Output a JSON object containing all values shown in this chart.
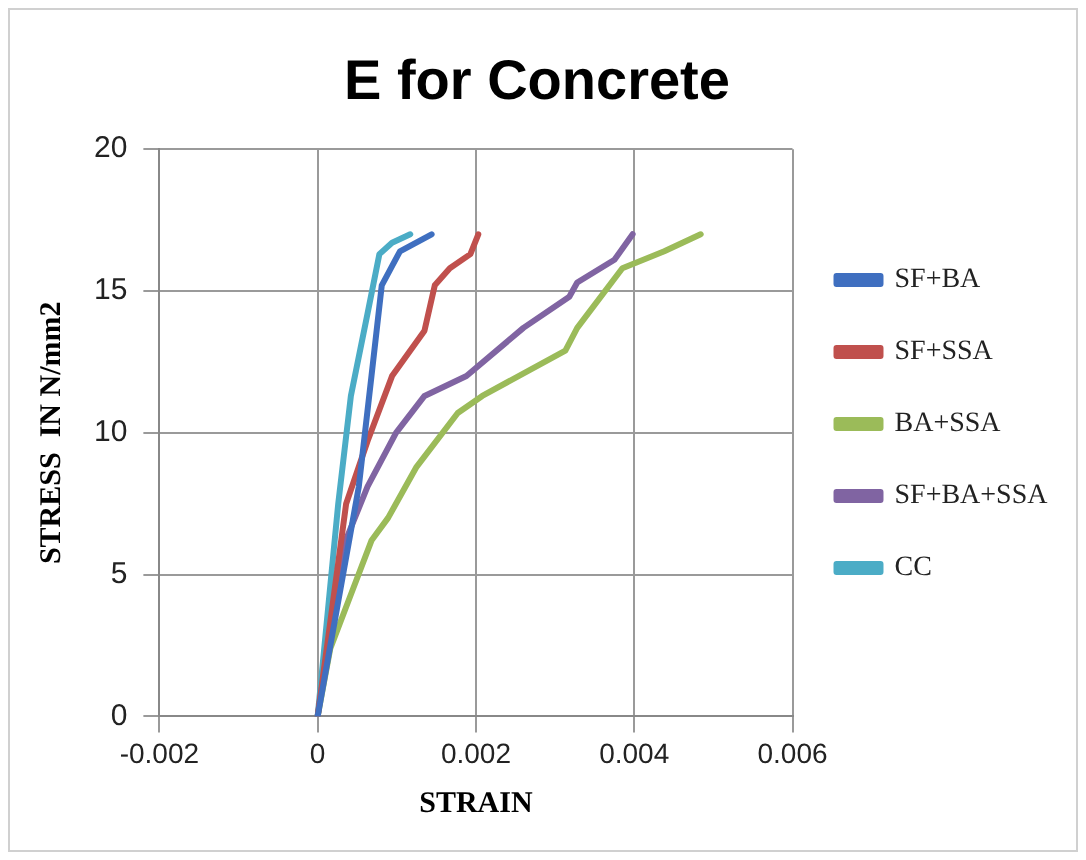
{
  "chart_data": {
    "type": "line",
    "title": "E for Concrete",
    "xlabel": "STRAIN",
    "ylabel": "STRESS  IN N/mm2",
    "xlim": [
      -0.002,
      0.006
    ],
    "xticks": [
      -0.002,
      0,
      0.002,
      0.004,
      0.006
    ],
    "ylim": [
      0,
      20
    ],
    "yticks": [
      0,
      5,
      10,
      15,
      20
    ],
    "grid": true,
    "legend": "right",
    "marker": "none",
    "line_style": "solid",
    "series": [
      {
        "name": "SF+BA",
        "color": "#3f6fc0",
        "x": [
          0,
          0.00052,
          0.00068,
          0.00081,
          0.00104,
          0.00144
        ],
        "values": [
          0,
          8.1,
          12,
          15.2,
          16.4,
          17
        ]
      },
      {
        "name": "SF+SSA",
        "color": "#c0504d",
        "x": [
          0,
          0.00036,
          0.00063,
          0.00094,
          0.00135,
          0.00148,
          0.00167,
          0.00193,
          0.00203
        ],
        "values": [
          0,
          7.5,
          9.7,
          12,
          13.6,
          15.2,
          15.8,
          16.3,
          17
        ]
      },
      {
        "name": "BA+SSA",
        "color": "#9bbb59",
        "x": [
          0,
          0.00016,
          0.00042,
          0.00068,
          0.00089,
          0.00125,
          0.00177,
          0.00208,
          0.00313,
          0.00328,
          0.00385,
          0.00438,
          0.00484
        ],
        "values": [
          0,
          2.4,
          4.3,
          6.2,
          7,
          8.8,
          10.7,
          11.3,
          12.9,
          13.7,
          15.8,
          16.4,
          17
        ]
      },
      {
        "name": "SF+BA+SSA",
        "color": "#8064a2",
        "x": [
          0,
          0.00031,
          0.00063,
          0.00099,
          0.00135,
          0.00188,
          0.0026,
          0.00318,
          0.00328,
          0.00375,
          0.00398
        ],
        "values": [
          0,
          5.9,
          8.1,
          10,
          11.3,
          12,
          13.7,
          14.8,
          15.3,
          16.1,
          17
        ]
      },
      {
        "name": "CC",
        "color": "#4bacc6",
        "x": [
          0,
          0.00026,
          0.00042,
          0.00063,
          0.00078,
          0.00094,
          0.00117
        ],
        "values": [
          0,
          7.5,
          11.3,
          14.2,
          16.3,
          16.7,
          17
        ]
      }
    ]
  }
}
